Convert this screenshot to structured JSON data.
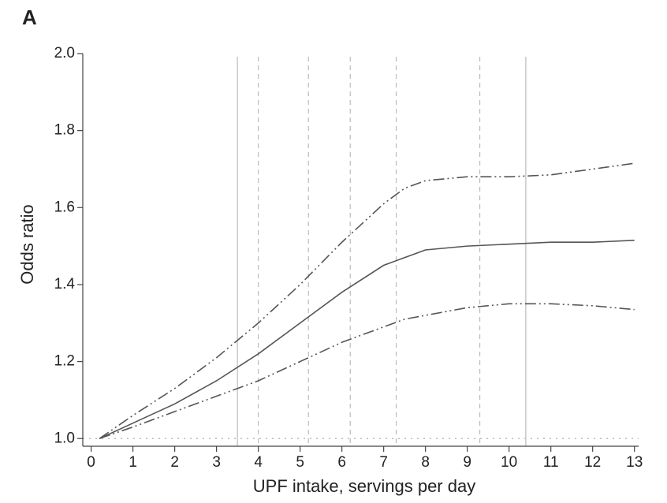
{
  "chart_data": {
    "type": "line",
    "panel_label": "A",
    "x_label": "UPF intake, servings per day",
    "y_label": "Odds ratio",
    "xlim": [
      -0.2,
      13.1
    ],
    "ylim": [
      0.98,
      2.0
    ],
    "xticks": [
      0,
      1,
      2,
      3,
      4,
      5,
      6,
      7,
      8,
      9,
      10,
      11,
      12,
      13
    ],
    "yticks": [
      {
        "value": 1.0,
        "label": "1.0"
      },
      {
        "value": 1.2,
        "label": "1.2"
      },
      {
        "value": 1.4,
        "label": "1.4"
      },
      {
        "value": 1.6,
        "label": "1.6"
      },
      {
        "value": 1.8,
        "label": "1.8"
      },
      {
        "value": 2.0,
        "label": "2.0"
      }
    ],
    "x": [
      0.2,
      1,
      2,
      3,
      4,
      5,
      6,
      7,
      7.5,
      8,
      9,
      10,
      11,
      12,
      13
    ],
    "series": [
      {
        "color": "#555555",
        "dash": "solid",
        "values": [
          1.0,
          1.04,
          1.09,
          1.15,
          1.22,
          1.3,
          1.38,
          1.45,
          1.47,
          1.49,
          1.5,
          1.505,
          1.51,
          1.51,
          1.515
        ]
      },
      {
        "color": "#555555",
        "dash": "dashdot",
        "values": [
          1.0,
          1.06,
          1.13,
          1.21,
          1.3,
          1.4,
          1.51,
          1.61,
          1.65,
          1.67,
          1.68,
          1.68,
          1.685,
          1.7,
          1.715
        ]
      },
      {
        "color": "#555555",
        "dash": "dashdot",
        "values": [
          1.0,
          1.03,
          1.07,
          1.11,
          1.15,
          1.2,
          1.25,
          1.29,
          1.31,
          1.32,
          1.34,
          1.35,
          1.35,
          1.345,
          1.335
        ]
      }
    ],
    "reference_x": [
      {
        "value": 3.5,
        "style": "solid"
      },
      {
        "value": 4,
        "style": "dashed"
      },
      {
        "value": 5.2,
        "style": "dashed"
      },
      {
        "value": 6.2,
        "style": "dashed"
      },
      {
        "value": 7.3,
        "style": "dashed"
      },
      {
        "value": 9.3,
        "style": "dashed"
      },
      {
        "value": 10.4,
        "style": "solid"
      }
    ],
    "reference_y": 1.0,
    "reference_color": "#bbbbbb"
  }
}
